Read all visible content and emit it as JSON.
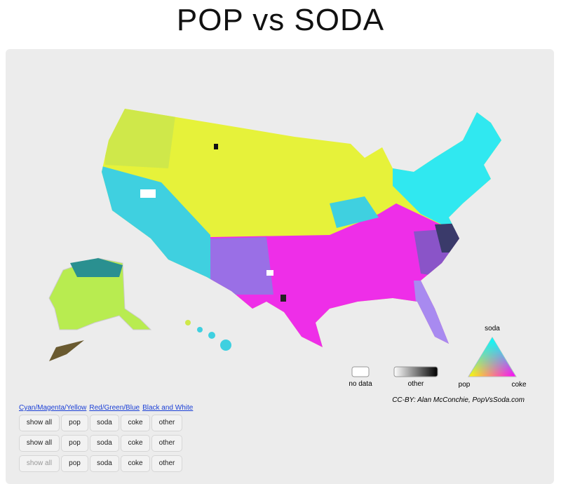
{
  "header": {
    "title": "POP vs SODA"
  },
  "legend": {
    "no_data": "no data",
    "other": "other",
    "soda": "soda",
    "pop": "pop",
    "coke": "coke"
  },
  "credit": "CC-BY: Alan McConchie, PopVsSoda.com",
  "color_schemes": [
    "Cyan/Magenta/Yellow",
    "Red/Green/Blue",
    "Black and White"
  ],
  "button_rows": [
    [
      "show all",
      "pop",
      "soda",
      "coke",
      "other"
    ],
    [
      "show all",
      "pop",
      "soda",
      "coke",
      "other"
    ],
    [
      "show all",
      "pop",
      "soda",
      "coke",
      "other"
    ]
  ]
}
